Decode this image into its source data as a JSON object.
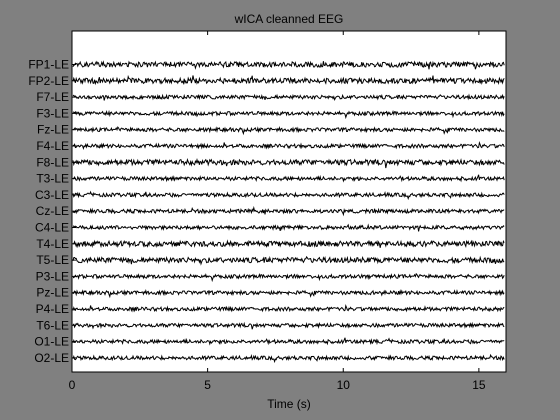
{
  "chart_data": {
    "type": "line",
    "title": "wICA cleanned EEG",
    "xlabel": "Time (s)",
    "ylabel": "",
    "xlim": [
      0,
      16
    ],
    "xticks": [
      0,
      5,
      10,
      15
    ],
    "channels": [
      "FP1-LE",
      "FP2-LE",
      "F7-LE",
      "F3-LE",
      "Fz-LE",
      "F4-LE",
      "F8-LE",
      "T3-LE",
      "C3-LE",
      "Cz-LE",
      "C4-LE",
      "T4-LE",
      "T5-LE",
      "P3-LE",
      "Pz-LE",
      "P4-LE",
      "T6-LE",
      "O1-LE",
      "O2-LE"
    ],
    "grid": false,
    "legend": "none",
    "colors": {
      "background": "#808080",
      "axes": "#ffffff",
      "trace": "#000000"
    }
  }
}
